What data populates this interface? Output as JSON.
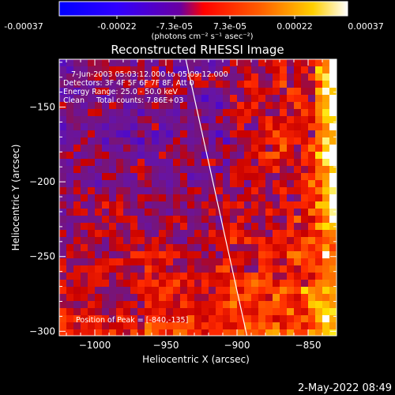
{
  "colorbar": {
    "ticks": [
      "-0.00037",
      "-0.00022",
      "-7.3e-05",
      "7.3e-05",
      "0.00022",
      "0.00037"
    ],
    "units_label": "(photons cm⁻² s⁻¹ asec⁻²)"
  },
  "chart_data": {
    "type": "heatmap",
    "title": "Reconstructed RHESSI Image",
    "xlabel": "Heliocentric X (arcsec)",
    "ylabel": "Heliocentric Y (arcsec)",
    "xlim": [
      -1025,
      -830
    ],
    "ylim": [
      -303,
      -118
    ],
    "xticks": [
      -1000,
      -950,
      -900,
      -850
    ],
    "yticks": [
      -150,
      -200,
      -250,
      -300
    ],
    "colorscale": [
      "#0000ff",
      "#8000ff",
      "#ff0000",
      "#ff8000",
      "#ffff00",
      "#ffffff"
    ],
    "limb_line": {
      "x": [
        -936,
        -893
      ],
      "y": [
        -118,
        -303
      ]
    },
    "peak": {
      "x": -840,
      "y": -135
    },
    "annotations": {
      "time_range": "7-Jun-2003 05:03:12.000 to 05:09:12.000",
      "detectors": "Detectors: 3F 4F 5F 6F 7F 8F, Att 0",
      "energy": "Energy Range: 25.0 - 50.0 keV",
      "clean": "Clean     Total counts: 7.86E+03",
      "peak_label": "Position of Peak = [-840,-135]"
    }
  },
  "footer": {
    "timestamp": "2-May-2022 08:49"
  }
}
